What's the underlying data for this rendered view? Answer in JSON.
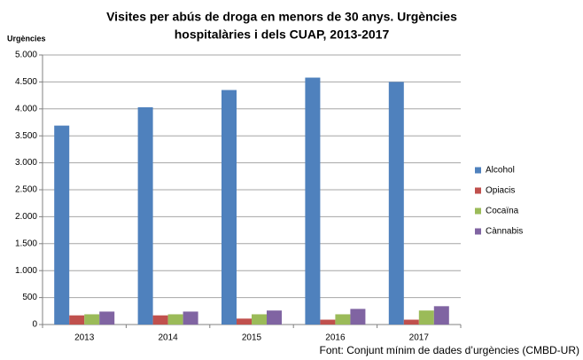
{
  "chart_data": {
    "type": "bar",
    "title": [
      "Visites per abús de droga en menors de 30 anys. Urgències",
      "hospitalàries i dels CUAP, 2013-2017"
    ],
    "y_label": "Urgències",
    "source": "Font:  Conjunt mínim de dades  d’urgències (CMBD-UR)",
    "categories": [
      "2013",
      "2014",
      "2015",
      "2016",
      "2017"
    ],
    "series": [
      {
        "name": "Alcohol",
        "color": "#4f81bd",
        "values": [
          3690,
          4030,
          4350,
          4580,
          4500
        ]
      },
      {
        "name": "Opiacis",
        "color": "#c0504d",
        "values": [
          170,
          170,
          110,
          90,
          90
        ]
      },
      {
        "name": "Cocaïna",
        "color": "#9bbb59",
        "values": [
          190,
          190,
          190,
          190,
          260
        ]
      },
      {
        "name": "Cànnabis",
        "color": "#8064a2",
        "values": [
          240,
          240,
          260,
          290,
          340
        ]
      }
    ],
    "ylim": [
      0,
      5000
    ],
    "yticks": [
      0,
      500,
      {
        "value": 1000,
        "label": "1.000"
      },
      {
        "value": 1500,
        "label": "1.500"
      },
      {
        "value": 2000,
        "label": "2.000"
      },
      {
        "value": 2500,
        "label": "2.500"
      },
      {
        "value": 3000,
        "label": "3.000"
      },
      {
        "value": 3500,
        "label": "3.500"
      },
      {
        "value": 4000,
        "label": "4.000"
      },
      {
        "value": 4500,
        "label": "4.500"
      },
      {
        "value": 5000,
        "label": "5.000"
      }
    ],
    "grid": true,
    "legend": "right"
  }
}
